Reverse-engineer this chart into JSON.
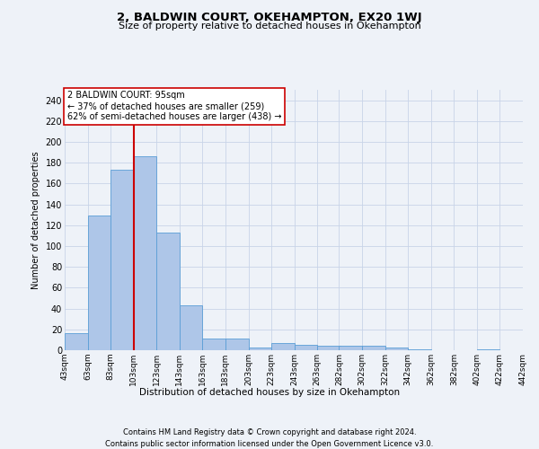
{
  "title": "2, BALDWIN COURT, OKEHAMPTON, EX20 1WJ",
  "subtitle": "Size of property relative to detached houses in Okehampton",
  "xlabel": "Distribution of detached houses by size in Okehampton",
  "ylabel": "Number of detached properties",
  "footer_line1": "Contains HM Land Registry data © Crown copyright and database right 2024.",
  "footer_line2": "Contains public sector information licensed under the Open Government Licence v3.0.",
  "annotation_title": "2 BALDWIN COURT: 95sqm",
  "annotation_line2": "← 37% of detached houses are smaller (259)",
  "annotation_line3": "62% of semi-detached houses are larger (438) →",
  "property_size": 95,
  "bin_starts": [
    43,
    63,
    83,
    103,
    123,
    143,
    163,
    183,
    203,
    223,
    243,
    263,
    282,
    302,
    322,
    342,
    362,
    382,
    402,
    422
  ],
  "bin_width": 20,
  "bar_heights": [
    16,
    129,
    173,
    186,
    113,
    43,
    11,
    11,
    3,
    7,
    5,
    4,
    4,
    4,
    3,
    1,
    0,
    0,
    1,
    0
  ],
  "bar_color": "#aec6e8",
  "bar_edge_color": "#5a9ed6",
  "vline_color": "#cc0000",
  "vline_x": 103,
  "annotation_box_edge_color": "#cc0000",
  "annotation_box_face_color": "#ffffff",
  "grid_color": "#c8d4e8",
  "ylim": [
    0,
    250
  ],
  "yticks": [
    0,
    20,
    40,
    60,
    80,
    100,
    120,
    140,
    160,
    180,
    200,
    220,
    240
  ],
  "bg_color": "#eef2f8",
  "axes_bg_color": "#eef2f8",
  "tick_labels": [
    "43sqm",
    "63sqm",
    "83sqm",
    "103sqm",
    "123sqm",
    "143sqm",
    "163sqm",
    "183sqm",
    "203sqm",
    "223sqm",
    "243sqm",
    "263sqm",
    "282sqm",
    "302sqm",
    "322sqm",
    "342sqm",
    "362sqm",
    "382sqm",
    "402sqm",
    "422sqm",
    "442sqm"
  ]
}
